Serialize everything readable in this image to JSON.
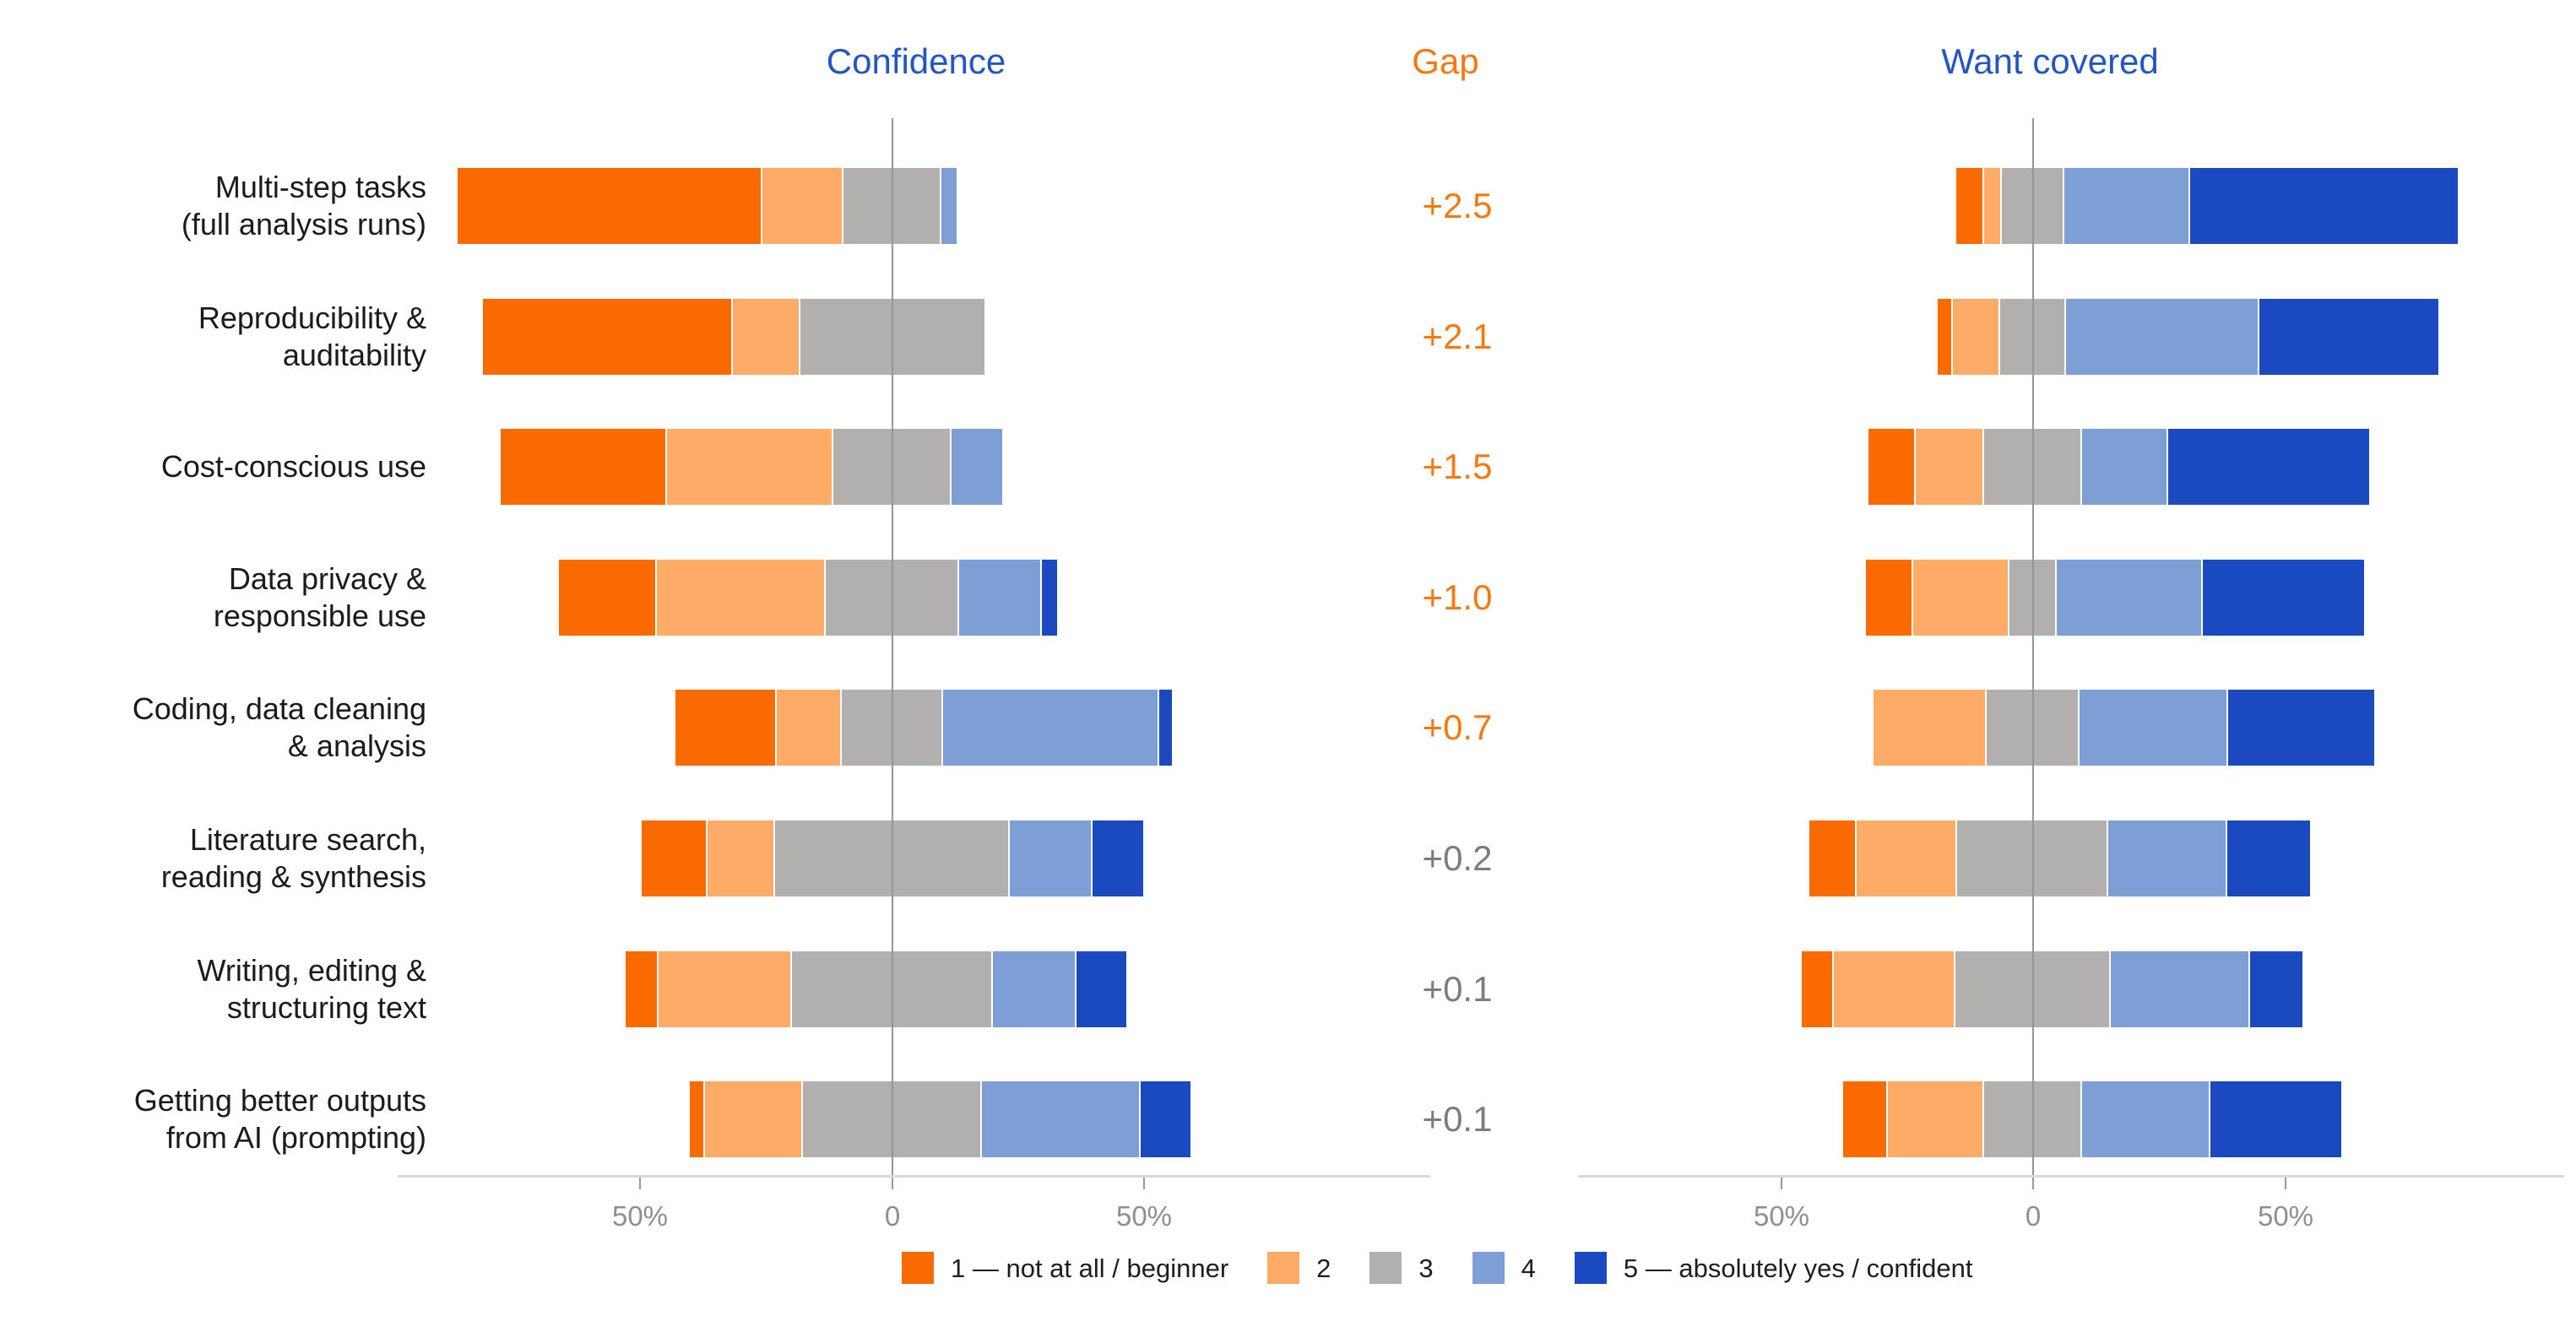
{
  "chart_data": {
    "type": "diverging_stacked_bar_likert",
    "description_of_layout": "Two horizontal diverging stacked bar panels sharing row categories; neutral (3) segment centered on zero; a Gap value column sits between panels.",
    "categories": [
      "Multi-step tasks\n(full analysis runs)",
      "Reproducibility &\nauditability",
      "Cost-conscious use",
      "Data privacy &\nresponsible use",
      "Coding, data cleaning\n& analysis",
      "Literature search,\nreading & synthesis",
      "Writing, editing &\nstructuring text",
      "Getting better outputs\nfrom AI (prompting)"
    ],
    "levels": [
      {
        "label": "1 — not at all / beginner",
        "color": "#f96a01"
      },
      {
        "label": "2",
        "color": "#fdab66"
      },
      {
        "label": "3",
        "color": "#b1b0ae"
      },
      {
        "label": "4",
        "color": "#7d9fd6"
      },
      {
        "label": "5 — absolutely yes / confident",
        "color": "#1a49c0"
      }
    ],
    "panels": {
      "confidence": {
        "title": "Confidence",
        "title_color": "#2155c8",
        "values_pct": [
          [
            60.5,
            16.0,
            19.5,
            3.0,
            0.0
          ],
          [
            49.5,
            13.5,
            36.5,
            0.0,
            0.0
          ],
          [
            33.0,
            33.0,
            23.5,
            10.0,
            0.0
          ],
          [
            19.5,
            33.5,
            26.5,
            16.5,
            3.0
          ],
          [
            20.0,
            13.0,
            20.0,
            43.0,
            2.5
          ],
          [
            13.0,
            13.5,
            46.5,
            16.5,
            10.0
          ],
          [
            6.5,
            26.5,
            40.0,
            16.5,
            10.0
          ],
          [
            3.0,
            19.5,
            35.5,
            31.5,
            10.0
          ]
        ]
      },
      "want_covered": {
        "title": "Want covered",
        "title_color": "#2155c8",
        "values_pct": [
          [
            5.5,
            3.5,
            12.5,
            25.0,
            53.0
          ],
          [
            3.0,
            9.5,
            13.0,
            38.5,
            35.5
          ],
          [
            9.5,
            13.5,
            19.5,
            17.0,
            40.0
          ],
          [
            9.5,
            19.0,
            9.5,
            29.0,
            32.0
          ],
          [
            0.0,
            22.5,
            18.5,
            29.5,
            29.0
          ],
          [
            9.5,
            20.0,
            30.0,
            23.5,
            16.5
          ],
          [
            6.5,
            24.0,
            31.0,
            27.5,
            10.5
          ],
          [
            9.0,
            19.0,
            19.5,
            25.5,
            26.0
          ]
        ]
      }
    },
    "gap": {
      "title": "Gap",
      "title_color": "#f9780e",
      "values": [
        "+2.5",
        "+2.1",
        "+1.5",
        "+1.0",
        "+0.7",
        "+0.2",
        "+0.1",
        "+0.1"
      ],
      "value_colors": [
        "#f9780e",
        "#f9780e",
        "#f9780e",
        "#f9780e",
        "#f9780e",
        "#7c7c7c",
        "#7c7c7c",
        "#7c7c7c"
      ]
    },
    "axis": {
      "tick_labels": [
        "50%",
        "0",
        "50%"
      ],
      "tick_values_pct": [
        -50,
        0,
        50
      ],
      "grid": "zero line only"
    },
    "legend_position": "bottom"
  }
}
